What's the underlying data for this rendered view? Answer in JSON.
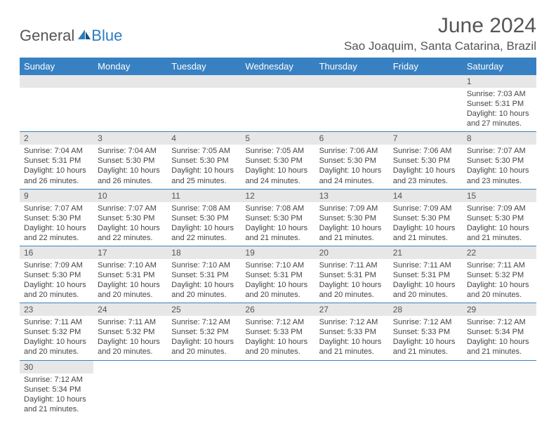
{
  "logo": {
    "text1": "General",
    "text2": "Blue"
  },
  "title": "June 2024",
  "location": "Sao Joaquim, Santa Catarina, Brazil",
  "colors": {
    "header_bg": "#3781c2",
    "header_text": "#ffffff",
    "daynum_bg": "#e7e7e7",
    "border": "#3781c2",
    "text": "#555555",
    "logo_blue": "#2d7cbf"
  },
  "weekdays": [
    "Sunday",
    "Monday",
    "Tuesday",
    "Wednesday",
    "Thursday",
    "Friday",
    "Saturday"
  ],
  "weeks": [
    [
      null,
      null,
      null,
      null,
      null,
      null,
      {
        "n": "1",
        "sunrise": "Sunrise: 7:03 AM",
        "sunset": "Sunset: 5:31 PM",
        "d1": "Daylight: 10 hours",
        "d2": "and 27 minutes."
      }
    ],
    [
      {
        "n": "2",
        "sunrise": "Sunrise: 7:04 AM",
        "sunset": "Sunset: 5:31 PM",
        "d1": "Daylight: 10 hours",
        "d2": "and 26 minutes."
      },
      {
        "n": "3",
        "sunrise": "Sunrise: 7:04 AM",
        "sunset": "Sunset: 5:30 PM",
        "d1": "Daylight: 10 hours",
        "d2": "and 26 minutes."
      },
      {
        "n": "4",
        "sunrise": "Sunrise: 7:05 AM",
        "sunset": "Sunset: 5:30 PM",
        "d1": "Daylight: 10 hours",
        "d2": "and 25 minutes."
      },
      {
        "n": "5",
        "sunrise": "Sunrise: 7:05 AM",
        "sunset": "Sunset: 5:30 PM",
        "d1": "Daylight: 10 hours",
        "d2": "and 24 minutes."
      },
      {
        "n": "6",
        "sunrise": "Sunrise: 7:06 AM",
        "sunset": "Sunset: 5:30 PM",
        "d1": "Daylight: 10 hours",
        "d2": "and 24 minutes."
      },
      {
        "n": "7",
        "sunrise": "Sunrise: 7:06 AM",
        "sunset": "Sunset: 5:30 PM",
        "d1": "Daylight: 10 hours",
        "d2": "and 23 minutes."
      },
      {
        "n": "8",
        "sunrise": "Sunrise: 7:07 AM",
        "sunset": "Sunset: 5:30 PM",
        "d1": "Daylight: 10 hours",
        "d2": "and 23 minutes."
      }
    ],
    [
      {
        "n": "9",
        "sunrise": "Sunrise: 7:07 AM",
        "sunset": "Sunset: 5:30 PM",
        "d1": "Daylight: 10 hours",
        "d2": "and 22 minutes."
      },
      {
        "n": "10",
        "sunrise": "Sunrise: 7:07 AM",
        "sunset": "Sunset: 5:30 PM",
        "d1": "Daylight: 10 hours",
        "d2": "and 22 minutes."
      },
      {
        "n": "11",
        "sunrise": "Sunrise: 7:08 AM",
        "sunset": "Sunset: 5:30 PM",
        "d1": "Daylight: 10 hours",
        "d2": "and 22 minutes."
      },
      {
        "n": "12",
        "sunrise": "Sunrise: 7:08 AM",
        "sunset": "Sunset: 5:30 PM",
        "d1": "Daylight: 10 hours",
        "d2": "and 21 minutes."
      },
      {
        "n": "13",
        "sunrise": "Sunrise: 7:09 AM",
        "sunset": "Sunset: 5:30 PM",
        "d1": "Daylight: 10 hours",
        "d2": "and 21 minutes."
      },
      {
        "n": "14",
        "sunrise": "Sunrise: 7:09 AM",
        "sunset": "Sunset: 5:30 PM",
        "d1": "Daylight: 10 hours",
        "d2": "and 21 minutes."
      },
      {
        "n": "15",
        "sunrise": "Sunrise: 7:09 AM",
        "sunset": "Sunset: 5:30 PM",
        "d1": "Daylight: 10 hours",
        "d2": "and 21 minutes."
      }
    ],
    [
      {
        "n": "16",
        "sunrise": "Sunrise: 7:09 AM",
        "sunset": "Sunset: 5:30 PM",
        "d1": "Daylight: 10 hours",
        "d2": "and 20 minutes."
      },
      {
        "n": "17",
        "sunrise": "Sunrise: 7:10 AM",
        "sunset": "Sunset: 5:31 PM",
        "d1": "Daylight: 10 hours",
        "d2": "and 20 minutes."
      },
      {
        "n": "18",
        "sunrise": "Sunrise: 7:10 AM",
        "sunset": "Sunset: 5:31 PM",
        "d1": "Daylight: 10 hours",
        "d2": "and 20 minutes."
      },
      {
        "n": "19",
        "sunrise": "Sunrise: 7:10 AM",
        "sunset": "Sunset: 5:31 PM",
        "d1": "Daylight: 10 hours",
        "d2": "and 20 minutes."
      },
      {
        "n": "20",
        "sunrise": "Sunrise: 7:11 AM",
        "sunset": "Sunset: 5:31 PM",
        "d1": "Daylight: 10 hours",
        "d2": "and 20 minutes."
      },
      {
        "n": "21",
        "sunrise": "Sunrise: 7:11 AM",
        "sunset": "Sunset: 5:31 PM",
        "d1": "Daylight: 10 hours",
        "d2": "and 20 minutes."
      },
      {
        "n": "22",
        "sunrise": "Sunrise: 7:11 AM",
        "sunset": "Sunset: 5:32 PM",
        "d1": "Daylight: 10 hours",
        "d2": "and 20 minutes."
      }
    ],
    [
      {
        "n": "23",
        "sunrise": "Sunrise: 7:11 AM",
        "sunset": "Sunset: 5:32 PM",
        "d1": "Daylight: 10 hours",
        "d2": "and 20 minutes."
      },
      {
        "n": "24",
        "sunrise": "Sunrise: 7:11 AM",
        "sunset": "Sunset: 5:32 PM",
        "d1": "Daylight: 10 hours",
        "d2": "and 20 minutes."
      },
      {
        "n": "25",
        "sunrise": "Sunrise: 7:12 AM",
        "sunset": "Sunset: 5:32 PM",
        "d1": "Daylight: 10 hours",
        "d2": "and 20 minutes."
      },
      {
        "n": "26",
        "sunrise": "Sunrise: 7:12 AM",
        "sunset": "Sunset: 5:33 PM",
        "d1": "Daylight: 10 hours",
        "d2": "and 20 minutes."
      },
      {
        "n": "27",
        "sunrise": "Sunrise: 7:12 AM",
        "sunset": "Sunset: 5:33 PM",
        "d1": "Daylight: 10 hours",
        "d2": "and 21 minutes."
      },
      {
        "n": "28",
        "sunrise": "Sunrise: 7:12 AM",
        "sunset": "Sunset: 5:33 PM",
        "d1": "Daylight: 10 hours",
        "d2": "and 21 minutes."
      },
      {
        "n": "29",
        "sunrise": "Sunrise: 7:12 AM",
        "sunset": "Sunset: 5:34 PM",
        "d1": "Daylight: 10 hours",
        "d2": "and 21 minutes."
      }
    ],
    [
      {
        "n": "30",
        "sunrise": "Sunrise: 7:12 AM",
        "sunset": "Sunset: 5:34 PM",
        "d1": "Daylight: 10 hours",
        "d2": "and 21 minutes."
      },
      null,
      null,
      null,
      null,
      null,
      null
    ]
  ]
}
